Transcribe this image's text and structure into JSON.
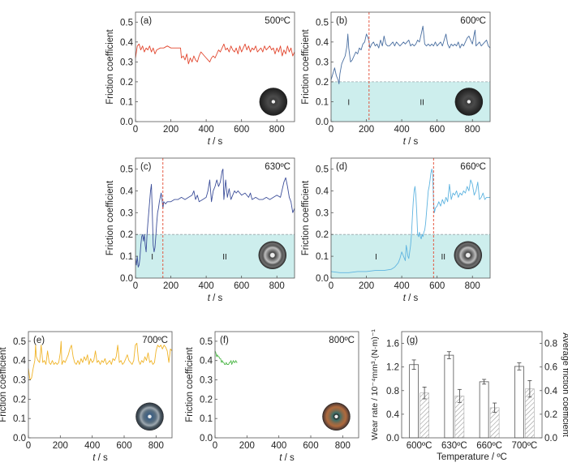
{
  "chart_data": [
    {
      "id": "a",
      "type": "line",
      "panel_label": "(a)",
      "temperature": "500ºC",
      "xlabel_italic": "t",
      "xlabel_unit": " / s",
      "ylabel": "Friction coefficient",
      "xlim": [
        0,
        900
      ],
      "ylim": [
        0,
        0.55
      ],
      "xticks": [
        0,
        200,
        400,
        600,
        800
      ],
      "yticks": [
        0.0,
        0.1,
        0.2,
        0.3,
        0.4,
        0.5
      ],
      "color": "#e2472f",
      "disc": {
        "style": "dark-grey",
        "x": 780,
        "y": 0.1
      },
      "x": [
        0,
        10,
        20,
        30,
        40,
        50,
        60,
        70,
        80,
        90,
        100,
        110,
        120,
        140,
        160,
        180,
        200,
        220,
        240,
        255,
        260,
        270,
        280,
        290,
        300,
        310,
        320,
        330,
        340,
        350,
        360,
        370,
        380,
        390,
        400,
        410,
        420,
        430,
        440,
        450,
        460,
        470,
        480,
        490,
        500,
        510,
        520,
        530,
        540,
        550,
        560,
        570,
        580,
        590,
        600,
        610,
        620,
        630,
        640,
        650,
        660,
        670,
        680,
        690,
        700,
        710,
        720,
        730,
        740,
        750,
        760,
        770,
        780,
        790,
        800,
        810,
        820,
        830,
        840,
        850,
        860,
        870,
        880,
        890,
        900
      ],
      "y": [
        0.32,
        0.38,
        0.39,
        0.36,
        0.38,
        0.35,
        0.37,
        0.36,
        0.38,
        0.35,
        0.37,
        0.34,
        0.36,
        0.37,
        0.37,
        0.38,
        0.37,
        0.37,
        0.37,
        0.37,
        0.32,
        0.33,
        0.31,
        0.34,
        0.29,
        0.32,
        0.3,
        0.33,
        0.31,
        0.3,
        0.33,
        0.35,
        0.34,
        0.33,
        0.32,
        0.31,
        0.3,
        0.32,
        0.33,
        0.32,
        0.34,
        0.36,
        0.35,
        0.37,
        0.39,
        0.36,
        0.37,
        0.35,
        0.38,
        0.36,
        0.35,
        0.37,
        0.34,
        0.38,
        0.35,
        0.37,
        0.39,
        0.36,
        0.38,
        0.35,
        0.37,
        0.36,
        0.38,
        0.35,
        0.36,
        0.37,
        0.35,
        0.38,
        0.36,
        0.37,
        0.38,
        0.36,
        0.37,
        0.34,
        0.37,
        0.35,
        0.38,
        0.33,
        0.36,
        0.34,
        0.38,
        0.35,
        0.37,
        0.33,
        0.35
      ]
    },
    {
      "id": "b",
      "type": "line",
      "panel_label": "(b)",
      "temperature": "600ºC",
      "xlabel_italic": "t",
      "xlabel_unit": " / s",
      "ylabel": "Friction coefficient",
      "xlim": [
        0,
        900
      ],
      "ylim": [
        0,
        0.55
      ],
      "xticks": [
        0,
        200,
        400,
        600,
        800
      ],
      "yticks": [
        0.0,
        0.1,
        0.2,
        0.3,
        0.4,
        0.5
      ],
      "color": "#4a6fa1",
      "divider_x": 215,
      "shade_below": 0.2,
      "regions": [
        {
          "label": "I",
          "x": 100
        },
        {
          "label": "II",
          "x": 515
        }
      ],
      "disc": {
        "style": "dark-grey",
        "x": 780,
        "y": 0.1
      },
      "x": [
        0,
        10,
        20,
        30,
        40,
        45,
        50,
        60,
        70,
        80,
        90,
        95,
        100,
        110,
        120,
        130,
        140,
        150,
        160,
        170,
        180,
        190,
        200,
        210,
        215,
        220,
        230,
        240,
        250,
        260,
        270,
        280,
        290,
        300,
        310,
        320,
        330,
        340,
        350,
        360,
        370,
        380,
        390,
        400,
        410,
        420,
        430,
        440,
        450,
        460,
        470,
        480,
        490,
        500,
        510,
        520,
        530,
        540,
        550,
        560,
        570,
        580,
        590,
        600,
        610,
        620,
        630,
        640,
        650,
        660,
        670,
        680,
        690,
        700,
        710,
        720,
        730,
        740,
        750,
        760,
        770,
        780,
        790,
        800,
        810,
        815,
        820,
        830,
        840,
        850,
        860,
        870,
        880,
        890,
        900
      ],
      "y": [
        0.21,
        0.24,
        0.27,
        0.23,
        0.21,
        0.19,
        0.24,
        0.29,
        0.31,
        0.33,
        0.38,
        0.44,
        0.37,
        0.3,
        0.31,
        0.33,
        0.35,
        0.34,
        0.37,
        0.36,
        0.39,
        0.4,
        0.44,
        0.42,
        0.4,
        0.37,
        0.39,
        0.4,
        0.38,
        0.39,
        0.37,
        0.41,
        0.38,
        0.43,
        0.39,
        0.38,
        0.38,
        0.39,
        0.4,
        0.38,
        0.4,
        0.39,
        0.38,
        0.39,
        0.4,
        0.39,
        0.4,
        0.41,
        0.38,
        0.39,
        0.38,
        0.39,
        0.41,
        0.4,
        0.44,
        0.48,
        0.39,
        0.38,
        0.39,
        0.38,
        0.39,
        0.38,
        0.4,
        0.38,
        0.39,
        0.4,
        0.38,
        0.41,
        0.44,
        0.39,
        0.37,
        0.39,
        0.38,
        0.39,
        0.38,
        0.4,
        0.37,
        0.39,
        0.38,
        0.4,
        0.42,
        0.43,
        0.41,
        0.39,
        0.44,
        0.46,
        0.38,
        0.39,
        0.4,
        0.38,
        0.39,
        0.4,
        0.41,
        0.38,
        0.37
      ]
    },
    {
      "id": "c",
      "type": "line",
      "panel_label": "(c)",
      "temperature": "630ºC",
      "xlabel_italic": "t",
      "xlabel_unit": " / s",
      "ylabel": "Friction coefficient",
      "xlim": [
        0,
        900
      ],
      "ylim": [
        0,
        0.55
      ],
      "xticks": [
        0,
        200,
        400,
        600,
        800
      ],
      "yticks": [
        0.0,
        0.1,
        0.2,
        0.3,
        0.4,
        0.5
      ],
      "color": "#3d4f9a",
      "divider_x": 155,
      "shade_below": 0.2,
      "regions": [
        {
          "label": "I",
          "x": 95
        },
        {
          "label": "II",
          "x": 505
        }
      ],
      "disc": {
        "style": "silver-ring",
        "x": 775,
        "y": 0.105
      },
      "x": [
        0,
        5,
        10,
        15,
        20,
        25,
        30,
        35,
        40,
        45,
        50,
        55,
        60,
        65,
        70,
        75,
        80,
        85,
        90,
        95,
        100,
        105,
        110,
        115,
        120,
        125,
        130,
        135,
        140,
        145,
        150,
        155,
        160,
        170,
        180,
        200,
        220,
        240,
        260,
        280,
        300,
        320,
        330,
        340,
        350,
        360,
        380,
        400,
        410,
        420,
        430,
        440,
        450,
        460,
        470,
        480,
        490,
        495,
        500,
        510,
        520,
        530,
        540,
        550,
        560,
        570,
        580,
        600,
        620,
        640,
        650,
        660,
        680,
        700,
        720,
        740,
        760,
        780,
        800,
        820,
        840,
        850,
        860,
        870,
        880,
        890,
        900
      ],
      "y": [
        0.09,
        0.06,
        0.1,
        0.05,
        0.06,
        0.09,
        0.15,
        0.19,
        0.2,
        0.17,
        0.2,
        0.15,
        0.12,
        0.2,
        0.25,
        0.3,
        0.35,
        0.4,
        0.43,
        0.3,
        0.15,
        0.12,
        0.14,
        0.19,
        0.25,
        0.3,
        0.32,
        0.35,
        0.37,
        0.39,
        0.36,
        0.32,
        0.35,
        0.34,
        0.35,
        0.35,
        0.36,
        0.36,
        0.37,
        0.36,
        0.37,
        0.38,
        0.4,
        0.36,
        0.38,
        0.35,
        0.36,
        0.37,
        0.4,
        0.45,
        0.35,
        0.4,
        0.42,
        0.45,
        0.42,
        0.44,
        0.49,
        0.5,
        0.36,
        0.45,
        0.37,
        0.41,
        0.36,
        0.38,
        0.4,
        0.39,
        0.4,
        0.38,
        0.39,
        0.37,
        0.39,
        0.36,
        0.37,
        0.36,
        0.36,
        0.37,
        0.36,
        0.37,
        0.38,
        0.37,
        0.44,
        0.46,
        0.42,
        0.37,
        0.35,
        0.3,
        0.32
      ]
    },
    {
      "id": "d",
      "type": "line",
      "panel_label": "(d)",
      "temperature": "660ºC",
      "xlabel_italic": "t",
      "xlabel_unit": " / s",
      "ylabel": "Friction coefficient",
      "xlim": [
        0,
        900
      ],
      "ylim": [
        0,
        0.55
      ],
      "xticks": [
        0,
        200,
        400,
        600,
        800
      ],
      "yticks": [
        0.0,
        0.1,
        0.2,
        0.3,
        0.4,
        0.5
      ],
      "color": "#5fb4e0",
      "divider_x": 580,
      "shade_below": 0.2,
      "regions": [
        {
          "label": "I",
          "x": 255
        },
        {
          "label": "II",
          "x": 635
        }
      ],
      "disc": {
        "style": "silver-ring",
        "x": 775,
        "y": 0.105
      },
      "x": [
        0,
        50,
        100,
        150,
        200,
        250,
        300,
        340,
        360,
        380,
        390,
        400,
        410,
        420,
        425,
        430,
        435,
        440,
        445,
        450,
        455,
        460,
        465,
        470,
        475,
        480,
        485,
        490,
        495,
        500,
        505,
        510,
        515,
        520,
        525,
        530,
        535,
        540,
        545,
        550,
        555,
        560,
        565,
        570,
        575,
        580,
        585,
        590,
        600,
        610,
        620,
        630,
        640,
        650,
        660,
        670,
        680,
        690,
        700,
        710,
        720,
        730,
        740,
        750,
        760,
        770,
        780,
        790,
        800,
        810,
        820,
        830,
        840,
        850,
        860,
        870,
        880,
        890,
        900
      ],
      "y": [
        0.03,
        0.025,
        0.025,
        0.03,
        0.03,
        0.035,
        0.035,
        0.04,
        0.05,
        0.07,
        0.09,
        0.12,
        0.1,
        0.08,
        0.15,
        0.13,
        0.1,
        0.09,
        0.12,
        0.15,
        0.2,
        0.28,
        0.35,
        0.4,
        0.42,
        0.38,
        0.3,
        0.2,
        0.19,
        0.21,
        0.19,
        0.18,
        0.2,
        0.19,
        0.21,
        0.22,
        0.25,
        0.3,
        0.35,
        0.4,
        0.42,
        0.45,
        0.48,
        0.5,
        0.48,
        0.35,
        0.3,
        0.32,
        0.33,
        0.35,
        0.33,
        0.36,
        0.34,
        0.37,
        0.35,
        0.43,
        0.36,
        0.39,
        0.38,
        0.4,
        0.37,
        0.39,
        0.38,
        0.4,
        0.39,
        0.42,
        0.4,
        0.45,
        0.43,
        0.38,
        0.4,
        0.44,
        0.36,
        0.37,
        0.39,
        0.36,
        0.37,
        0.37,
        0.37
      ]
    },
    {
      "id": "e",
      "type": "line",
      "panel_label": "(e)",
      "temperature": "700ºC",
      "xlabel_italic": "t",
      "xlabel_unit": " / s",
      "ylabel": "Friction coefficient",
      "xlim": [
        0,
        900
      ],
      "ylim": [
        0,
        0.55
      ],
      "xticks": [
        0,
        200,
        400,
        600,
        800
      ],
      "yticks": [
        0.0,
        0.1,
        0.2,
        0.3,
        0.4,
        0.5
      ],
      "color": "#f0b429",
      "disc": {
        "style": "blue-grey",
        "x": 760,
        "y": 0.11
      },
      "x": [
        0,
        10,
        20,
        30,
        40,
        45,
        50,
        60,
        70,
        80,
        90,
        100,
        110,
        120,
        130,
        140,
        150,
        160,
        170,
        180,
        190,
        200,
        205,
        210,
        220,
        230,
        240,
        250,
        260,
        270,
        280,
        290,
        300,
        310,
        320,
        330,
        340,
        350,
        360,
        370,
        380,
        390,
        400,
        410,
        420,
        430,
        440,
        450,
        460,
        470,
        480,
        490,
        500,
        510,
        520,
        530,
        540,
        550,
        560,
        570,
        580,
        590,
        600,
        610,
        620,
        630,
        640,
        650,
        660,
        670,
        680,
        690,
        700,
        710,
        720,
        730,
        740,
        750,
        760,
        770,
        780,
        790,
        800,
        810,
        820,
        830,
        840,
        850,
        860,
        870,
        880,
        890,
        900
      ],
      "y": [
        0.36,
        0.3,
        0.31,
        0.36,
        0.4,
        0.48,
        0.42,
        0.4,
        0.39,
        0.48,
        0.39,
        0.4,
        0.38,
        0.45,
        0.39,
        0.38,
        0.4,
        0.38,
        0.39,
        0.38,
        0.39,
        0.44,
        0.5,
        0.38,
        0.4,
        0.39,
        0.41,
        0.43,
        0.46,
        0.48,
        0.42,
        0.39,
        0.38,
        0.4,
        0.38,
        0.41,
        0.39,
        0.42,
        0.4,
        0.43,
        0.38,
        0.41,
        0.39,
        0.4,
        0.45,
        0.39,
        0.4,
        0.38,
        0.4,
        0.39,
        0.41,
        0.38,
        0.39,
        0.4,
        0.38,
        0.41,
        0.4,
        0.42,
        0.48,
        0.39,
        0.4,
        0.38,
        0.39,
        0.41,
        0.43,
        0.4,
        0.39,
        0.38,
        0.4,
        0.48,
        0.49,
        0.4,
        0.38,
        0.4,
        0.39,
        0.42,
        0.4,
        0.44,
        0.39,
        0.4,
        0.38,
        0.39,
        0.45,
        0.48,
        0.47,
        0.48,
        0.46,
        0.48,
        0.47,
        0.45,
        0.39,
        0.46,
        0.45
      ]
    },
    {
      "id": "f",
      "type": "line",
      "panel_label": "(f)",
      "temperature": "800ºC",
      "xlabel_italic": "t",
      "xlabel_unit": " / s",
      "ylabel": "Friction coefficient",
      "xlim": [
        0,
        900
      ],
      "ylim": [
        0,
        0.55
      ],
      "xticks": [
        0,
        200,
        400,
        600,
        800
      ],
      "yticks": [
        0.0,
        0.1,
        0.2,
        0.3,
        0.4,
        0.5
      ],
      "color": "#4fb84a",
      "disc": {
        "style": "rusty",
        "x": 760,
        "y": 0.11
      },
      "x": [
        0,
        5,
        10,
        15,
        20,
        25,
        30,
        35,
        40,
        45,
        50,
        55,
        60,
        65,
        70,
        75,
        80,
        85,
        90,
        95,
        100,
        105,
        110,
        115,
        120,
        125,
        130,
        135,
        140
      ],
      "y": [
        0.45,
        0.44,
        0.42,
        0.43,
        0.42,
        0.42,
        0.41,
        0.41,
        0.39,
        0.4,
        0.39,
        0.39,
        0.38,
        0.38,
        0.39,
        0.38,
        0.38,
        0.38,
        0.39,
        0.39,
        0.4,
        0.38,
        0.39,
        0.4,
        0.39,
        0.39,
        0.4,
        0.39,
        0.39
      ]
    },
    {
      "id": "g",
      "type": "bar",
      "panel_label": "(g)",
      "categories": [
        "600ºC",
        "630ºC",
        "660ºC",
        "700ºC"
      ],
      "xlabel": "Temperature / ºC",
      "ylabel_left": "Wear rate / 10⁻⁴mm³·(N·m)⁻¹",
      "ylabel_right": "Average friction coefficient",
      "ylim_left": [
        0,
        1.8
      ],
      "ylim_right": [
        0,
        0.9
      ],
      "yticks_left": [
        0.0,
        0.4,
        0.8,
        1.2,
        1.6
      ],
      "yticks_right": [
        0.0,
        0.2,
        0.4,
        0.6,
        0.8
      ],
      "series": [
        {
          "name": "Wear rate",
          "axis": "left",
          "style": "open",
          "values": [
            1.24,
            1.4,
            0.95,
            1.21
          ],
          "errors": [
            0.08,
            0.06,
            0.04,
            0.06
          ]
        },
        {
          "name": "Average friction coefficient",
          "axis": "right",
          "style": "hatched",
          "values": [
            0.38,
            0.355,
            0.255,
            0.415
          ],
          "errors": [
            0.05,
            0.055,
            0.04,
            0.07
          ]
        }
      ]
    }
  ]
}
